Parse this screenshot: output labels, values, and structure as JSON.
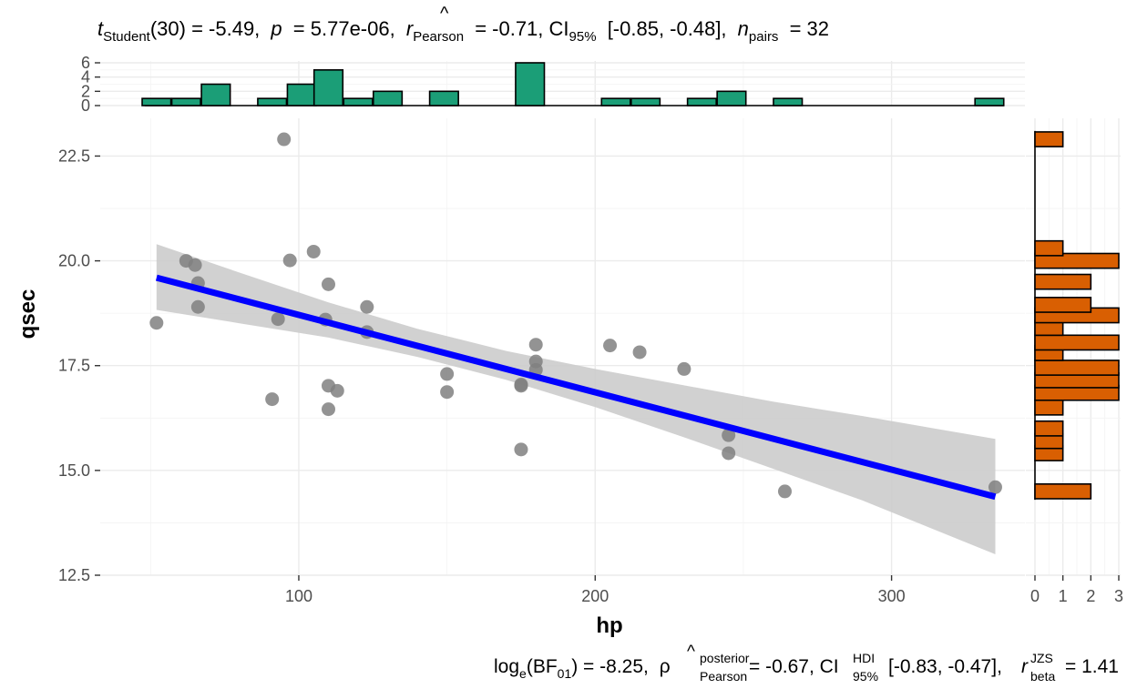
{
  "subtitle_top": {
    "t": "t",
    "student_sub": "Student",
    "df_part": "(30) = -5.49,",
    "p": "p",
    "p_part": "= 5.77e-06,",
    "r": "r",
    "r_hat": "^",
    "pearson_sub": "Pearson",
    "r_part": "= -0.71, CI",
    "ci_sub": "95%",
    "ci_part": "[-0.85, -0.48],",
    "n": "n",
    "pairs_sub": "pairs",
    "n_part": "= 32"
  },
  "caption_bottom": {
    "log": "log",
    "log_sub": "e",
    "bf_part": "(BF",
    "bf_sub": "01",
    "bf_close": ") = -8.25,",
    "rho": "ρ",
    "rho_hat": "^",
    "posterior_sup": "posterior",
    "pearson_sub": "Pearson",
    "rho_part": "= -0.67, CI",
    "hdi_sup": "HDI",
    "ci_sub": "95%",
    "ci_part": "[-0.83, -0.47],",
    "r": "r",
    "jzs_sup": "JZS",
    "beta_sub": "beta",
    "r_part": "= 1.41"
  },
  "chart_data": {
    "type": "scatter",
    "xlabel": "hp",
    "ylabel": "qsec",
    "xlim": [
      33,
      345
    ],
    "ylim": [
      12.5,
      23.4
    ],
    "x_ticks": [
      100,
      200,
      300
    ],
    "y_ticks": [
      12.5,
      15.0,
      17.5,
      20.0,
      22.5
    ],
    "y_tick_labels": [
      "12.5",
      "15.0",
      "17.5",
      "20.0",
      "22.5"
    ],
    "grid": true,
    "points": [
      [
        110,
        16.46
      ],
      [
        110,
        17.02
      ],
      [
        93,
        18.61
      ],
      [
        110,
        19.44
      ],
      [
        175,
        17.02
      ],
      [
        105,
        20.22
      ],
      [
        245,
        15.84
      ],
      [
        62,
        20.0
      ],
      [
        95,
        22.9
      ],
      [
        123,
        18.3
      ],
      [
        123,
        18.9
      ],
      [
        180,
        17.4
      ],
      [
        180,
        17.6
      ],
      [
        180,
        18.0
      ],
      [
        205,
        17.98
      ],
      [
        215,
        17.82
      ],
      [
        230,
        17.42
      ],
      [
        66,
        19.47
      ],
      [
        52,
        18.52
      ],
      [
        65,
        19.9
      ],
      [
        97,
        20.01
      ],
      [
        150,
        16.87
      ],
      [
        150,
        17.3
      ],
      [
        245,
        15.41
      ],
      [
        175,
        17.05
      ],
      [
        66,
        18.9
      ],
      [
        91,
        16.7
      ],
      [
        113,
        16.9
      ],
      [
        264,
        14.5
      ],
      [
        175,
        15.5
      ],
      [
        335,
        14.6
      ],
      [
        109,
        18.6
      ]
    ],
    "regression": {
      "intercept": 20.5564,
      "slope": -0.018458,
      "x_range": [
        52,
        335
      ]
    },
    "confidence_band": {
      "x": [
        52,
        80,
        110,
        140,
        170,
        200,
        230,
        260,
        290,
        335
      ],
      "lower": [
        18.83,
        18.51,
        18.17,
        17.71,
        17.16,
        16.51,
        15.79,
        15.04,
        14.29,
        13.0
      ],
      "upper": [
        20.4,
        19.72,
        19.01,
        18.38,
        17.85,
        17.42,
        17.03,
        16.64,
        16.3,
        15.75
      ]
    },
    "top_histogram": {
      "y_ticks": [
        0,
        2,
        4,
        6
      ],
      "ylim": [
        0,
        6
      ],
      "bin_width": 9.7,
      "bins": [
        {
          "x": 52,
          "count": 1
        },
        {
          "x": 62,
          "count": 1
        },
        {
          "x": 72,
          "count": 3
        },
        {
          "x": 91,
          "count": 1
        },
        {
          "x": 101,
          "count": 3
        },
        {
          "x": 110,
          "count": 5
        },
        {
          "x": 120,
          "count": 1
        },
        {
          "x": 130,
          "count": 2
        },
        {
          "x": 149,
          "count": 2
        },
        {
          "x": 178,
          "count": 6
        },
        {
          "x": 207,
          "count": 1
        },
        {
          "x": 217,
          "count": 1
        },
        {
          "x": 236,
          "count": 1
        },
        {
          "x": 246,
          "count": 2
        },
        {
          "x": 265,
          "count": 1
        },
        {
          "x": 333,
          "count": 1
        }
      ],
      "color": "#1b9e77"
    },
    "right_histogram": {
      "x_ticks": [
        0,
        1,
        2,
        3
      ],
      "xlim": [
        0,
        3
      ],
      "bin_width": 0.3516,
      "bins": [
        {
          "y": 14.5,
          "count": 2
        },
        {
          "y": 15.41,
          "count": 1
        },
        {
          "y": 15.7,
          "count": 1
        },
        {
          "y": 16.0,
          "count": 1
        },
        {
          "y": 16.5,
          "count": 1
        },
        {
          "y": 16.85,
          "count": 3
        },
        {
          "y": 17.15,
          "count": 3
        },
        {
          "y": 17.45,
          "count": 3
        },
        {
          "y": 17.8,
          "count": 1
        },
        {
          "y": 18.05,
          "count": 3
        },
        {
          "y": 18.4,
          "count": 1
        },
        {
          "y": 18.7,
          "count": 3
        },
        {
          "y": 18.95,
          "count": 2
        },
        {
          "y": 19.5,
          "count": 2
        },
        {
          "y": 20.0,
          "count": 3
        },
        {
          "y": 20.3,
          "count": 1
        },
        {
          "y": 22.9,
          "count": 1
        }
      ],
      "color": "#d95f02"
    },
    "colors": {
      "points": "#808080",
      "line": "#0000ff",
      "band": "#cccccc"
    }
  }
}
